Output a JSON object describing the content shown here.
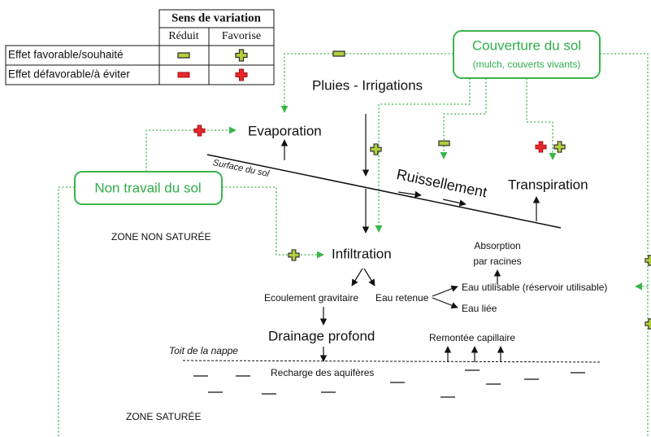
{
  "legend": {
    "title": "Sens de variation",
    "columns": [
      "Réduit",
      "Favorise"
    ],
    "rows": [
      "Effet favorable/souhaité",
      "Effet défavorable/à éviter"
    ]
  },
  "nodes": {
    "couverture": {
      "label": "Couverture du sol",
      "detail": "(mulch, couverts vivants)"
    },
    "non_travail": "Non travail du sol"
  },
  "labels": {
    "pluies": "Pluies - Irrigations",
    "evaporation": "Evaporation",
    "surface": "Surface du sol",
    "ruissellement": "Ruissellement",
    "transpiration": "Transpiration",
    "zone_non_saturee": "ZONE NON SATURÉE",
    "infiltration": "Infiltration",
    "absorption": [
      "Absorption",
      "par racines"
    ],
    "ecoulement": "Ecoulement gravitaire",
    "eau_retenue": "Eau retenue",
    "eau_utilisable": "Eau utilisable (réservoir utilisable)",
    "eau_liee": "Eau liée",
    "drainage": "Drainage profond",
    "remontee": "Remontée capillaire",
    "toit": "Toit de la nappe",
    "recharge": "Recharge des aquifères",
    "zone_saturee": "ZONE SATURÉE"
  }
}
